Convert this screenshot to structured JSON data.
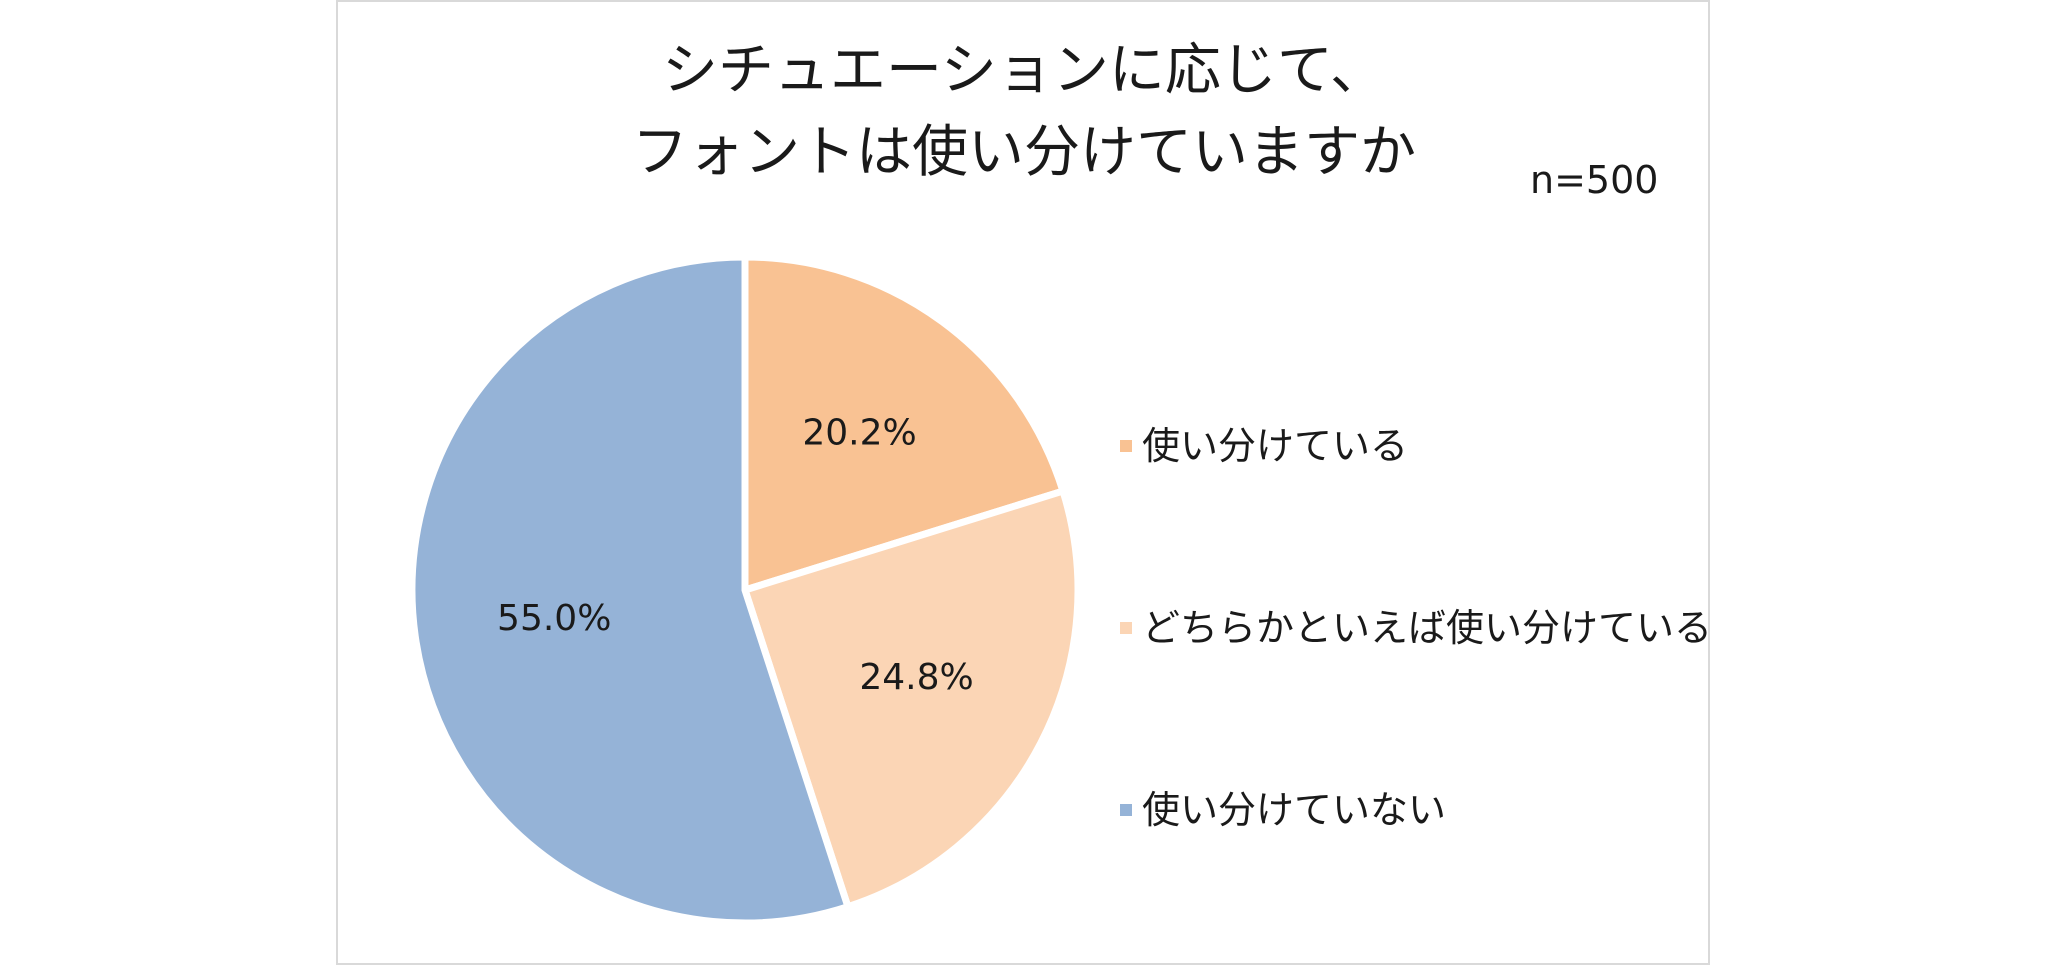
{
  "chart_data": {
    "type": "pie",
    "title_lines": [
      "シチュエーションに応じて、",
      "フォントは使い分けていますか"
    ],
    "sample_size": "n=500",
    "slices": [
      {
        "name": "使い分けている",
        "value": 20.2,
        "label": "20.2%",
        "color": "#f9c293"
      },
      {
        "name": "どちらかといえば使い分けている",
        "value": 24.8,
        "label": "24.8%",
        "color": "#fbd5b5"
      },
      {
        "name": "使い分けていない",
        "value": 55.0,
        "label": "55.0%",
        "color": "#95b3d7"
      }
    ],
    "start": "12 o'clock",
    "direction": "clockwise",
    "legend_position": "right"
  }
}
